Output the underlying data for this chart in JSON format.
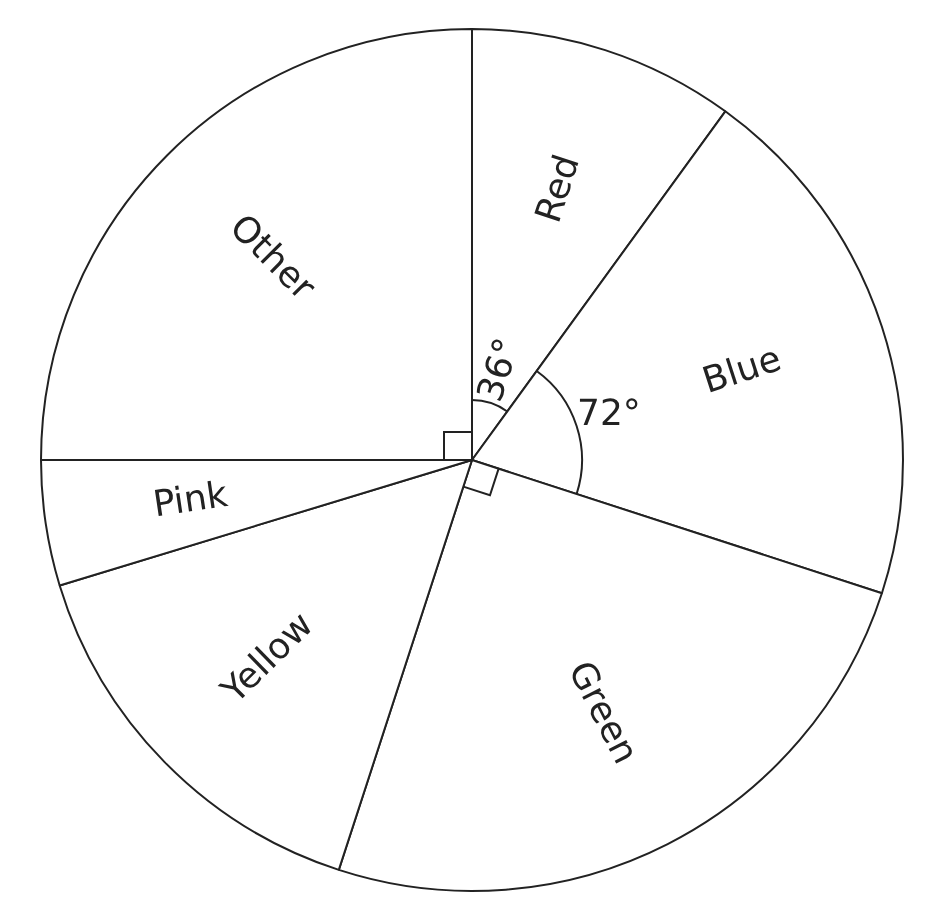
{
  "chart_data": {
    "type": "pie",
    "categories": [
      "Red",
      "Blue",
      "Green",
      "Yellow",
      "Pink",
      "Other"
    ],
    "values": [
      10,
      20,
      25,
      15.3,
      4.7,
      25
    ],
    "colors": [
      "#ffffff",
      "#ffffff",
      "#ffffff",
      "#ffffff",
      "#ffffff",
      "#ffffff"
    ],
    "annotations": [
      {
        "text": "36°",
        "x": "Red"
      },
      {
        "text": "72°",
        "x": "Blue"
      }
    ],
    "legend": false
  }
}
